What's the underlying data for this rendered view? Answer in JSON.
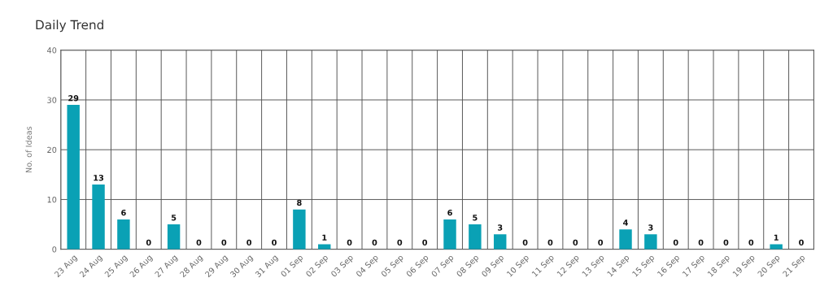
{
  "chart_data": {
    "type": "bar",
    "title": "Daily Trend",
    "ylabel": "No. of Ideas",
    "categories": [
      "23 Aug",
      "24 Aug",
      "25 Aug",
      "26 Aug",
      "27 Aug",
      "28 Aug",
      "29 Aug",
      "30 Aug",
      "31 Aug",
      "01 Sep",
      "02 Sep",
      "03 Sep",
      "04 Sep",
      "05 Sep",
      "06 Sep",
      "07 Sep",
      "08 Sep",
      "09 Sep",
      "10 Sep",
      "11 Sep",
      "12 Sep",
      "13 Sep",
      "14 Sep",
      "15 Sep",
      "16 Sep",
      "17 Sep",
      "18 Sep",
      "19 Sep",
      "20 Sep",
      "21 Sep"
    ],
    "values": [
      29,
      13,
      6,
      0,
      5,
      0,
      0,
      0,
      0,
      8,
      1,
      0,
      0,
      0,
      0,
      6,
      5,
      3,
      0,
      0,
      0,
      0,
      4,
      3,
      0,
      0,
      0,
      0,
      1,
      0
    ],
    "color": "#0aa1b5",
    "ylim": [
      0,
      40
    ],
    "yticks": [
      0,
      10,
      20,
      30,
      40
    ],
    "grid": true,
    "data_labels": true
  }
}
